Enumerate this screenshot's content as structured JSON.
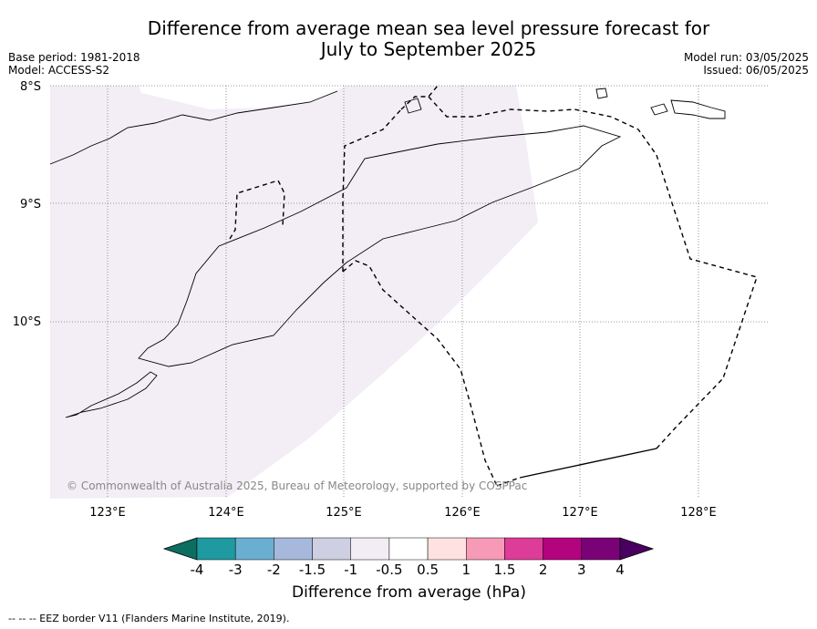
{
  "title": "Difference from average mean sea level pressure forecast for\nJuly to September 2025",
  "meta_left": [
    "Base period: 1981-2018",
    "Model: ACCESS-S2"
  ],
  "meta_right": [
    "Model run: 03/05/2025",
    "Issued: 06/05/2025"
  ],
  "map": {
    "lat_labels": [
      "8°S",
      "9°S",
      "10°S"
    ],
    "lon_labels": [
      "123°E",
      "124°E",
      "125°E",
      "126°E",
      "127°E",
      "128°E"
    ],
    "shading_value_range": "-0.5 to -1"
  },
  "copyright": "© Commonwealth of Australia 2025, Bureau of Meteorology, supported by COSPPac",
  "colorbar": {
    "ticks": [
      "-4",
      "-3",
      "-2",
      "-1.5",
      "-1",
      "-0.5",
      "0.5",
      "1",
      "1.5",
      "2",
      "3",
      "4"
    ],
    "colors": [
      "#0b6e60",
      "#1e9aa0",
      "#6aaed2",
      "#a6b9dc",
      "#cfcfe3",
      "#f2ecf5",
      "#ffffff",
      "#fde2e1",
      "#f79ab8",
      "#dd3c99",
      "#b3037e",
      "#7a0277",
      "#4a0060"
    ],
    "label": "Difference from average (hPa)"
  },
  "footnote": "--  --  -- EEZ border V11 (Flanders Marine Institute, 2019)."
}
